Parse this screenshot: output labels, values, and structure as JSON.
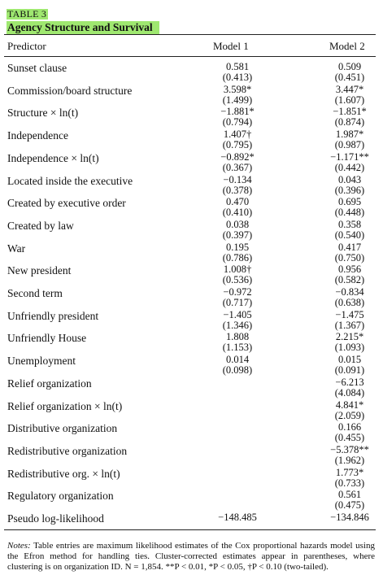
{
  "table": {
    "label": "TABLE 3",
    "title": "Agency Structure and Survival",
    "headers": {
      "predictor": "Predictor",
      "model1": "Model 1",
      "model2": "Model 2"
    },
    "rows": [
      {
        "name": "Sunset clause",
        "m1": "0.581",
        "m1se": "(0.413)",
        "m2": "0.509",
        "m2se": "(0.451)"
      },
      {
        "name": "Commission/board structure",
        "m1": "3.598*",
        "m1se": "(1.499)",
        "m2": "3.447*",
        "m2se": "(1.607)"
      },
      {
        "name": "Structure × ln(t)",
        "m1": "−1.881*",
        "m1se": "(0.794)",
        "m2": "−1.851*",
        "m2se": "(0.874)"
      },
      {
        "name": "Independence",
        "m1": "1.407†",
        "m1se": "(0.795)",
        "m2": "1.987*",
        "m2se": "(0.987)"
      },
      {
        "name": "Independence × ln(t)",
        "m1": "−0.892*",
        "m1se": "(0.367)",
        "m2": "−1.171**",
        "m2se": "(0.442)"
      },
      {
        "name": "Located inside the executive",
        "m1": "−0.134",
        "m1se": "(0.378)",
        "m2": "0.043",
        "m2se": "(0.396)"
      },
      {
        "name": "Created by executive order",
        "m1": "0.470",
        "m1se": "(0.410)",
        "m2": "0.695",
        "m2se": "(0.448)"
      },
      {
        "name": "Created by law",
        "m1": "0.038",
        "m1se": "(0.397)",
        "m2": "0.358",
        "m2se": "(0.540)"
      },
      {
        "name": "War",
        "m1": "0.195",
        "m1se": "(0.786)",
        "m2": "0.417",
        "m2se": "(0.750)"
      },
      {
        "name": "New president",
        "m1": "1.008†",
        "m1se": "(0.536)",
        "m2": "0.956",
        "m2se": "(0.582)"
      },
      {
        "name": "Second term",
        "m1": "−0.972",
        "m1se": "(0.717)",
        "m2": "−0.834",
        "m2se": "(0.638)"
      },
      {
        "name": "Unfriendly president",
        "m1": "−1.405",
        "m1se": "(1.346)",
        "m2": "−1.475",
        "m2se": "(1.367)"
      },
      {
        "name": "Unfriendly House",
        "m1": "1.808",
        "m1se": "(1.153)",
        "m2": "2.215*",
        "m2se": "(1.093)"
      },
      {
        "name": "Unemployment",
        "m1": "0.014",
        "m1se": "(0.098)",
        "m2": "0.015",
        "m2se": "(0.091)"
      },
      {
        "name": "Relief organization",
        "m1": "",
        "m1se": "",
        "m2": "−6.213",
        "m2se": "(4.084)"
      },
      {
        "name": "Relief organization × ln(t)",
        "m1": "",
        "m1se": "",
        "m2": "4.841*",
        "m2se": "(2.059)"
      },
      {
        "name": "Distributive organization",
        "m1": "",
        "m1se": "",
        "m2": "0.166",
        "m2se": "(0.455)"
      },
      {
        "name": "Redistributive organization",
        "m1": "",
        "m1se": "",
        "m2": "−5.378**",
        "m2se": "(1.962)"
      },
      {
        "name": "Redistributive org. × ln(t)",
        "m1": "",
        "m1se": "",
        "m2": "1.773*",
        "m2se": "(0.733)"
      },
      {
        "name": "Regulatory organization",
        "m1": "",
        "m1se": "",
        "m2": "0.561",
        "m2se": "(0.475)"
      },
      {
        "name": "Pseudo log-likelihood",
        "m1": "−148.485",
        "m1se": "",
        "m2": "−134.846",
        "m2se": ""
      }
    ],
    "notes_label": "Notes:",
    "notes_text": "Table entries are maximum likelihood estimates of the Cox proportional hazards model using the Efron method for handling ties. Cluster-corrected estimates appear in parentheses, where clustering is on organization ID. N = 1,854. **P < 0.01, *P < 0.05, †P < 0.10 (two-tailed)."
  }
}
